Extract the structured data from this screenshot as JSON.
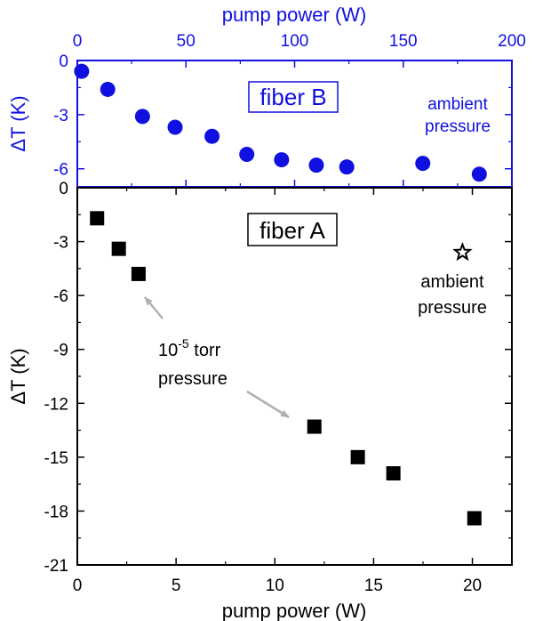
{
  "chart_data": [
    {
      "type": "scatter",
      "panel": "top",
      "label": "fiber B",
      "annotation": [
        "ambient",
        "pressure"
      ],
      "xlabel": "pump power (W)",
      "ylabel": "ΔT (K)",
      "xlim": [
        0,
        200
      ],
      "ylim": [
        -7,
        0
      ],
      "xticks": [
        "0",
        "50",
        "100",
        "150",
        "200"
      ],
      "yticks": [
        "0",
        "-3",
        "-6"
      ],
      "color": "#1010e0",
      "marker": "circle",
      "x": [
        2,
        14,
        30,
        45,
        62,
        78,
        94,
        110,
        124,
        159,
        185
      ],
      "y": [
        -0.6,
        -1.6,
        -3.1,
        -3.7,
        -4.2,
        -5.2,
        -5.5,
        -5.8,
        -5.9,
        -5.7,
        -6.3
      ]
    },
    {
      "type": "scatter",
      "panel": "bottom",
      "label": "fiber A",
      "xlabel": "pump power (W)",
      "ylabel": "ΔT (K)",
      "xlim": [
        0,
        22
      ],
      "ylim": [
        -21,
        0
      ],
      "xticks": [
        "0",
        "5",
        "10",
        "15",
        "20"
      ],
      "yticks": [
        "0",
        "-3",
        "-6",
        "-9",
        "-12",
        "-15",
        "-18",
        "-21"
      ],
      "color": "#000000",
      "series": [
        {
          "marker": "square",
          "note_base": "10",
          "note_exp": "-5",
          "note_unit": "torr",
          "note_line2": "pressure",
          "x": [
            1.0,
            2.1,
            3.1,
            12.0,
            14.2,
            16.0,
            20.1
          ],
          "y": [
            -1.7,
            -3.4,
            -4.8,
            -13.3,
            -15.0,
            -15.9,
            -18.4
          ]
        },
        {
          "marker": "star",
          "note": [
            "ambient",
            "pressure"
          ],
          "x": [
            19.5
          ],
          "y": [
            -3.6
          ]
        }
      ]
    }
  ]
}
